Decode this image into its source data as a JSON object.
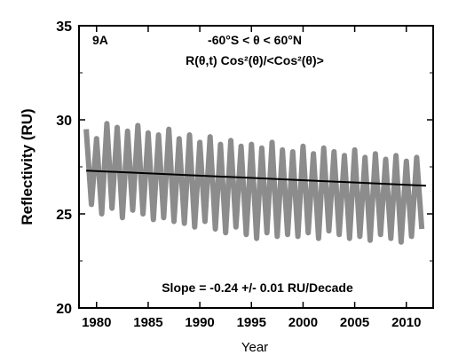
{
  "chart_data": {
    "type": "line",
    "panel_label": "9A",
    "annotation_line1": "-60°S < θ < 60°N",
    "annotation_line2": "R(θ,t) Cos²(θ)/<Cos²(θ)>",
    "slope_text": "Slope = -0.24 +/- 0.01 RU/Decade",
    "xlabel": "Year",
    "ylabel": "Reflectivity (RU)",
    "xlim": [
      1978.3,
      2012.6
    ],
    "ylim": [
      20,
      35
    ],
    "x_ticks": [
      1980,
      1985,
      1990,
      1995,
      2000,
      2005,
      2010
    ],
    "y_ticks": [
      20,
      25,
      30,
      35
    ],
    "grid": false,
    "series": [
      {
        "color": "#8c8c8c",
        "description_values": "noisy daily reflectivity oscillating annually between about 24 and 30 RU",
        "x": [
          1979.0,
          1979.5,
          1980.0,
          1980.5,
          1981.0,
          1981.5,
          1982.0,
          1982.5,
          1983.0,
          1983.5,
          1984.0,
          1984.5,
          1985.0,
          1985.5,
          1986.0,
          1986.5,
          1987.0,
          1987.5,
          1988.0,
          1988.5,
          1989.0,
          1989.5,
          1990.0,
          1990.5,
          1991.0,
          1991.5,
          1992.0,
          1992.5,
          1993.0,
          1993.5,
          1994.0,
          1994.5,
          1995.0,
          1995.5,
          1996.0,
          1996.5,
          1997.0,
          1997.5,
          1998.0,
          1998.5,
          1999.0,
          1999.5,
          2000.0,
          2000.5,
          2001.0,
          2001.5,
          2002.0,
          2002.5,
          2003.0,
          2003.5,
          2004.0,
          2004.5,
          2005.0,
          2005.5,
          2006.0,
          2006.5,
          2007.0,
          2007.5,
          2008.0,
          2008.5,
          2009.0,
          2009.5,
          2010.0,
          2010.5,
          2011.0,
          2011.5
        ],
        "y": [
          29.5,
          25.5,
          29.0,
          25.0,
          29.8,
          25.3,
          29.6,
          24.8,
          29.4,
          25.2,
          29.7,
          25.0,
          29.3,
          24.7,
          29.2,
          24.8,
          29.5,
          24.6,
          29.0,
          24.5,
          29.2,
          24.3,
          28.8,
          24.6,
          29.1,
          24.2,
          28.7,
          24.0,
          28.9,
          24.3,
          28.6,
          23.9,
          28.7,
          23.7,
          28.5,
          24.0,
          28.8,
          23.8,
          28.4,
          23.9,
          28.3,
          23.8,
          28.6,
          24.0,
          28.2,
          23.7,
          28.5,
          24.1,
          28.3,
          23.9,
          28.1,
          23.7,
          28.4,
          23.8,
          28.0,
          23.6,
          28.2,
          23.9,
          27.9,
          23.7,
          28.1,
          23.5,
          27.8,
          23.8,
          28.0,
          24.2
        ]
      },
      {
        "name": "trend",
        "color": "#000000",
        "x": [
          1979.0,
          2011.9
        ],
        "y": [
          27.3,
          26.5
        ]
      }
    ]
  }
}
